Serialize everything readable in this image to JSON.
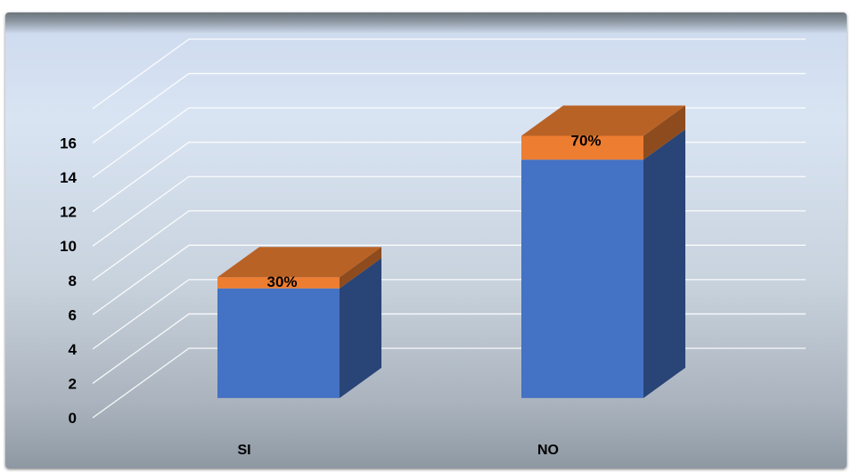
{
  "chart_data": {
    "type": "bar",
    "style": "3d-stacked-column",
    "categories": [
      "SI",
      "NO"
    ],
    "series": [
      {
        "values": [
          6.9,
          15.0
        ],
        "color": "#4472c4"
      },
      {
        "values": [
          0.7,
          1.5
        ],
        "color": "#ed7d31"
      }
    ],
    "data_labels": [
      "30%",
      "70%"
    ],
    "y_ticks": [
      "0",
      "2",
      "4",
      "6",
      "8",
      "10",
      "12",
      "14",
      "16"
    ],
    "ylim": [
      0,
      18
    ],
    "grid": true,
    "legend": "none",
    "title": "",
    "xlabel": "",
    "ylabel": ""
  }
}
